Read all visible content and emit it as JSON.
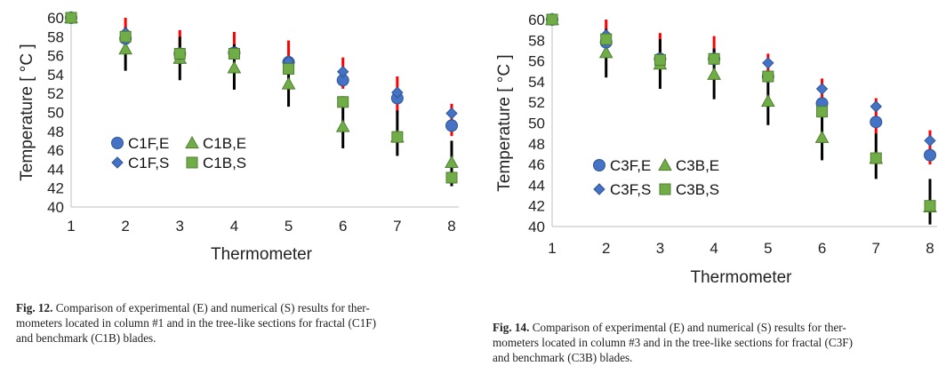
{
  "chart_data": [
    {
      "type": "scatter",
      "xlabel": "Thermometer",
      "ylabel": "Temperature [ °C ]",
      "x_ticks": [
        "1",
        "2",
        "3",
        "4",
        "5",
        "6",
        "7",
        "8"
      ],
      "y_ticks": [
        "40",
        "42",
        "44",
        "46",
        "48",
        "50",
        "52",
        "54",
        "56",
        "58",
        "60"
      ],
      "xlim": [
        1,
        8
      ],
      "ylim": [
        40,
        60
      ],
      "x": [
        1,
        2,
        3,
        4,
        5,
        6,
        7,
        8
      ],
      "series": [
        {
          "name": "C1F,E",
          "marker": "circle",
          "color": "#4472c4",
          "values": [
            60,
            57.8,
            56.2,
            56.3,
            55.3,
            53.4,
            51.5,
            48.6
          ]
        },
        {
          "name": "C1F,S",
          "marker": "diamond",
          "color": "#4472c4",
          "values": [
            60,
            58.4,
            56.3,
            56.3,
            55.4,
            54.3,
            52.1,
            49.9
          ]
        },
        {
          "name": "C1B,E",
          "marker": "triangle",
          "color": "#70ad47",
          "values": [
            60,
            56.7,
            55.7,
            54.7,
            53.0,
            48.5,
            47.4,
            44.7
          ]
        },
        {
          "name": "C1B,S",
          "marker": "square",
          "color": "#70ad47",
          "values": [
            60,
            58.0,
            56.2,
            56.2,
            54.6,
            51.1,
            47.4,
            43.1
          ]
        }
      ],
      "error_bars": [
        {
          "color": "#ff0000",
          "low": [
            60,
            57.5,
            56.0,
            56.0,
            54.5,
            52.5,
            50.0,
            47.5
          ],
          "high": [
            60,
            60.0,
            58.7,
            58.5,
            57.6,
            55.8,
            53.8,
            50.9
          ]
        },
        {
          "color": "#000000",
          "low": [
            60,
            54.4,
            53.4,
            52.4,
            50.6,
            46.2,
            45.4,
            42.2
          ],
          "high": [
            60,
            59.0,
            58.0,
            57.2,
            55.2,
            51.7,
            50.2,
            47.0
          ]
        }
      ],
      "legend_position": "left-lower",
      "caption_label": "Fig. 12.",
      "caption_lines": [
        "Comparison of experimental (E) and numerical (S) results for ther-",
        "mometers located in column #1 and in the tree-like sections for fractal (C1F)",
        "and benchmark (C1B) blades."
      ]
    },
    {
      "type": "scatter",
      "xlabel": "Thermometer",
      "ylabel": "Temperature [ °C ]",
      "x_ticks": [
        "1",
        "2",
        "3",
        "4",
        "5",
        "6",
        "7",
        "8"
      ],
      "y_ticks": [
        "40",
        "42",
        "44",
        "46",
        "48",
        "50",
        "52",
        "54",
        "56",
        "58",
        "60"
      ],
      "xlim": [
        1,
        8
      ],
      "ylim": [
        40,
        60
      ],
      "x": [
        1,
        2,
        3,
        4,
        5,
        6,
        7,
        8
      ],
      "series": [
        {
          "name": "C3F,E",
          "marker": "circle",
          "color": "#4472c4",
          "values": [
            60,
            57.8,
            56.2,
            56.2,
            54.5,
            51.9,
            50.1,
            46.9
          ]
        },
        {
          "name": "C3F,S",
          "marker": "diamond",
          "color": "#4472c4",
          "values": [
            60,
            58.5,
            56.3,
            56.3,
            55.8,
            53.3,
            51.6,
            48.3
          ]
        },
        {
          "name": "C3B,E",
          "marker": "triangle",
          "color": "#70ad47",
          "values": [
            60,
            56.8,
            55.7,
            54.7,
            52.1,
            48.6,
            46.6,
            41.9
          ]
        },
        {
          "name": "C3B,S",
          "marker": "square",
          "color": "#70ad47",
          "values": [
            60,
            58.1,
            56.1,
            56.2,
            54.5,
            51.1,
            46.6,
            42.0
          ]
        }
      ],
      "error_bars": [
        {
          "color": "#ff0000",
          "low": [
            60,
            57.5,
            55.8,
            55.8,
            54.0,
            51.0,
            49.0,
            46.0
          ],
          "high": [
            60,
            60.0,
            58.7,
            58.4,
            56.7,
            54.3,
            52.4,
            49.3
          ]
        },
        {
          "color": "#000000",
          "low": [
            60,
            54.4,
            53.3,
            52.3,
            49.8,
            46.4,
            44.6,
            40.2
          ],
          "high": [
            60,
            59.1,
            58.1,
            57.2,
            54.7,
            51.5,
            49.0,
            44.6
          ]
        }
      ],
      "legend_position": "left-lower",
      "caption_label": "Fig. 14.",
      "caption_lines": [
        "Comparison of experimental (E) and numerical (S) results for ther-",
        "mometers located in column #3 and in the tree-like sections for fractal (C3F)",
        "and benchmark (C3B) blades."
      ]
    }
  ]
}
